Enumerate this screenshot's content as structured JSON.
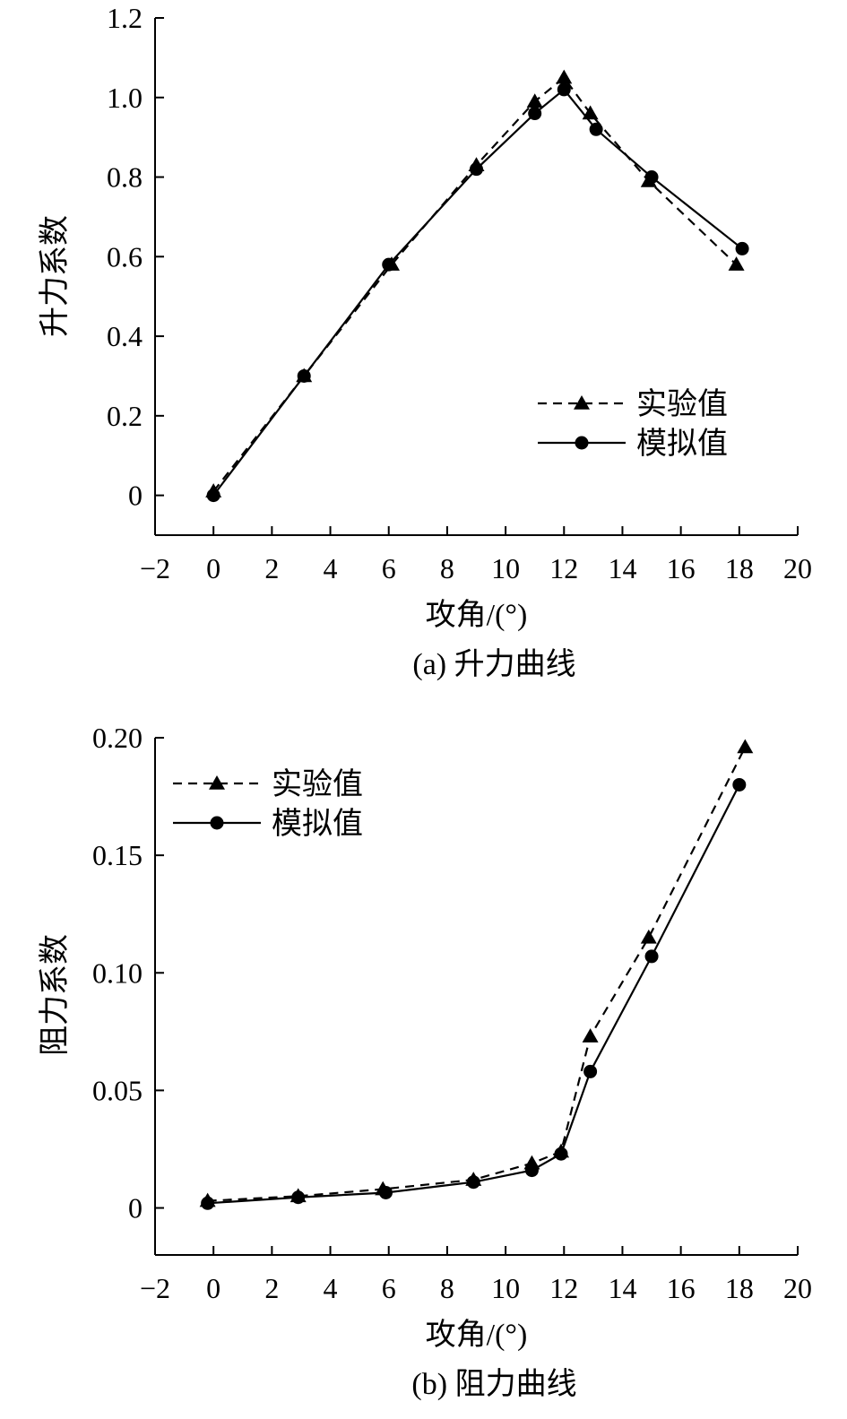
{
  "chart_data": [
    {
      "type": "line",
      "caption": "(a) 升力曲线",
      "xlabel": "攻角/(°)",
      "ylabel": "升力系数",
      "xlim": [
        -2,
        20
      ],
      "ylim": [
        -0.1,
        1.2
      ],
      "xticks": [
        "−2",
        "0",
        "2",
        "4",
        "6",
        "8",
        "10",
        "12",
        "14",
        "16",
        "18",
        "20"
      ],
      "yticks": [
        "0",
        "0.2",
        "0.4",
        "0.6",
        "0.8",
        "1.0",
        "1.2"
      ],
      "legend_position": "lower-right",
      "series": [
        {
          "name": "实验值",
          "style": "dashed",
          "marker": "triangle",
          "x": [
            0,
            3.1,
            6.1,
            9.0,
            11.0,
            12.0,
            12.9,
            14.9,
            17.9
          ],
          "y": [
            0.01,
            0.3,
            0.58,
            0.83,
            0.99,
            1.05,
            0.96,
            0.79,
            0.58
          ]
        },
        {
          "name": "模拟值",
          "style": "solid",
          "marker": "circle",
          "x": [
            0,
            3.1,
            6.0,
            9.0,
            11.0,
            12.0,
            13.1,
            15.0,
            18.1
          ],
          "y": [
            0.0,
            0.3,
            0.58,
            0.82,
            0.96,
            1.02,
            0.92,
            0.8,
            0.62
          ]
        }
      ]
    },
    {
      "type": "line",
      "caption": "(b) 阻力曲线",
      "xlabel": "攻角/(°)",
      "ylabel": "阻力系数",
      "xlim": [
        -2,
        20
      ],
      "ylim": [
        -0.02,
        0.2
      ],
      "xticks": [
        "−2",
        "0",
        "2",
        "4",
        "6",
        "8",
        "10",
        "12",
        "14",
        "16",
        "18",
        "20"
      ],
      "yticks": [
        "0",
        "0.05",
        "0.10",
        "0.15",
        "0.20"
      ],
      "legend_position": "top-left",
      "series": [
        {
          "name": "实验值",
          "style": "dashed",
          "marker": "triangle",
          "x": [
            -0.2,
            2.9,
            5.8,
            8.9,
            10.9,
            11.9,
            12.9,
            14.9,
            18.2
          ],
          "y": [
            0.003,
            0.005,
            0.008,
            0.012,
            0.019,
            0.024,
            0.073,
            0.115,
            0.196
          ]
        },
        {
          "name": "模拟值",
          "style": "solid",
          "marker": "circle",
          "x": [
            -0.2,
            2.9,
            5.9,
            8.9,
            10.9,
            11.9,
            12.9,
            15.0,
            18.0
          ],
          "y": [
            0.002,
            0.0045,
            0.0065,
            0.011,
            0.016,
            0.023,
            0.058,
            0.107,
            0.18
          ]
        }
      ]
    }
  ]
}
